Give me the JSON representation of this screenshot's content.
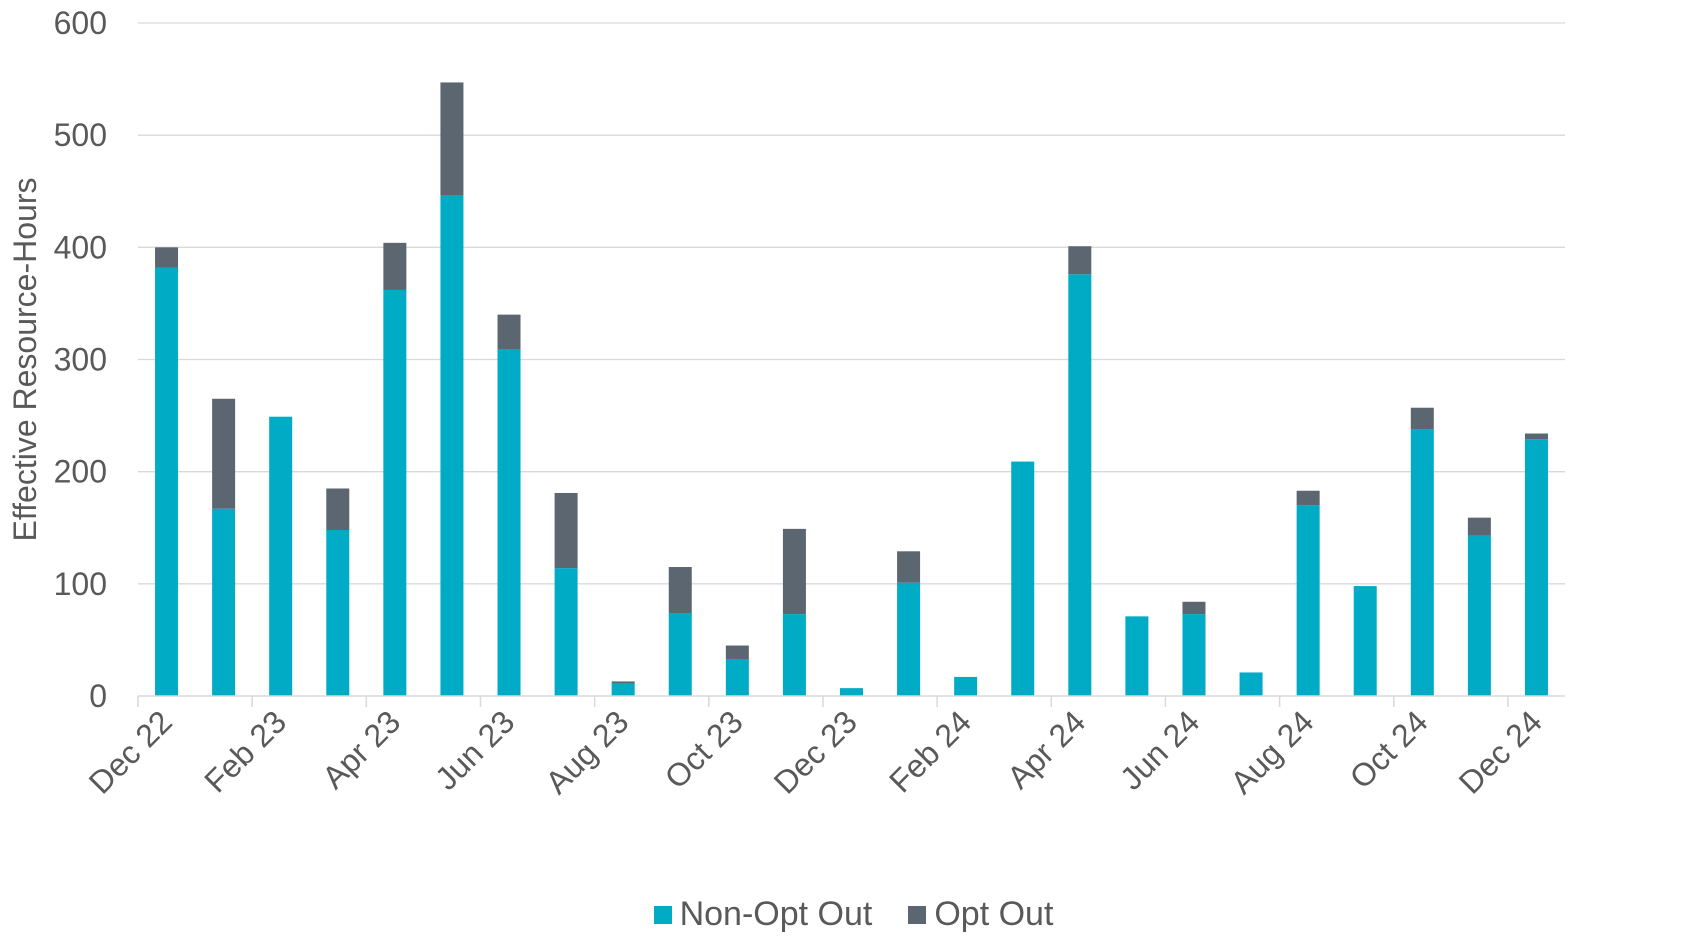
{
  "chart_data": {
    "type": "bar",
    "stacked": true,
    "title": "",
    "xlabel": "",
    "ylabel": "Effective Resource-Hours",
    "ylim": [
      0,
      600
    ],
    "yticks": [
      0,
      100,
      200,
      300,
      400,
      500,
      600
    ],
    "grid": true,
    "legend_position": "bottom",
    "categories": [
      "Dec 22",
      "Jan 23",
      "Feb 23",
      "Mar 23",
      "Apr 23",
      "May 23",
      "Jun 23",
      "Jul 23",
      "Aug 23",
      "Sep 23",
      "Oct 23",
      "Nov 23",
      "Dec 23",
      "Jan 24",
      "Feb 24",
      "Mar 24",
      "Apr 24",
      "May 24",
      "Jun 24",
      "Jul 24",
      "Aug 24",
      "Sep 24",
      "Oct 24",
      "Nov 24",
      "Dec 24"
    ],
    "tick_labels": [
      "Dec 22",
      "Feb 23",
      "Apr 23",
      "Jun 23",
      "Aug 23",
      "Oct 23",
      "Dec 23",
      "Feb 24",
      "Apr 24",
      "Jun 24",
      "Aug 24",
      "Oct 24",
      "Dec 24"
    ],
    "series": [
      {
        "name": "Non-Opt Out",
        "color": "#00ABC6",
        "values": [
          382,
          167,
          249,
          148,
          362,
          446,
          309,
          114,
          11,
          74,
          33,
          73,
          7,
          101,
          17,
          209,
          376,
          71,
          73,
          21,
          170,
          98,
          238,
          143,
          229
        ]
      },
      {
        "name": "Opt Out",
        "color": "#5C6670",
        "values": [
          18,
          98,
          0,
          37,
          42,
          101,
          31,
          67,
          2,
          41,
          12,
          76,
          0,
          28,
          0,
          0,
          25,
          0,
          11,
          0,
          13,
          0,
          19,
          16,
          5
        ]
      }
    ]
  }
}
